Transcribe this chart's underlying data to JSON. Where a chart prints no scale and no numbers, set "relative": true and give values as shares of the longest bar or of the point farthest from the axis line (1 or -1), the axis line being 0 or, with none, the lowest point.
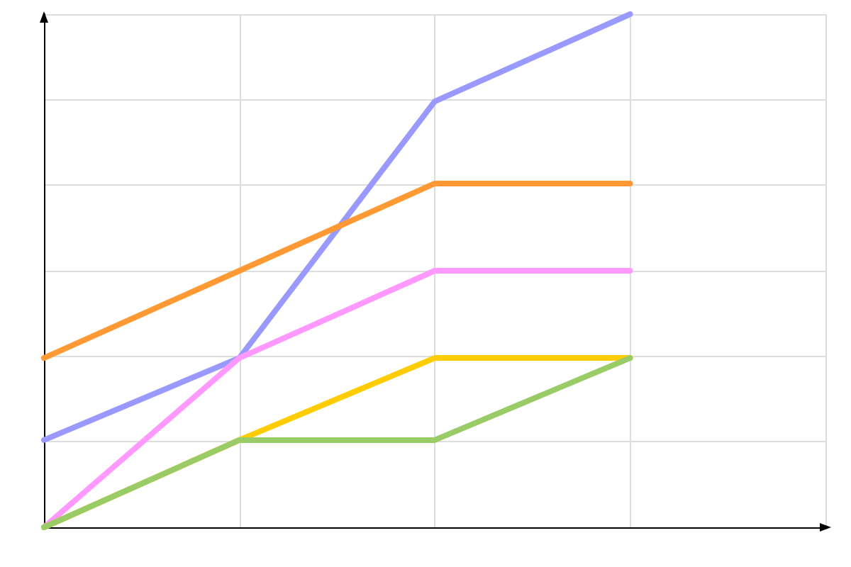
{
  "chart_data": {
    "type": "line",
    "relative": true,
    "categories": [
      null,
      null,
      null,
      null,
      null
    ],
    "series": [
      {
        "color": "#9999ff",
        "values": [
          0.17,
          0.33,
          0.83,
          1,
          null
        ]
      },
      {
        "color": "#ff9933",
        "values": [
          0.33,
          0.5,
          0.67,
          0.67,
          null
        ]
      },
      {
        "color": "#ff99ff",
        "values": [
          0,
          0.33,
          0.5,
          0.5,
          null
        ]
      },
      {
        "color": "#ffcc00",
        "values": [
          0,
          0.17,
          0.33,
          0.33,
          null
        ]
      },
      {
        "color": "#99cc66",
        "values": [
          0,
          0.17,
          0.17,
          0.33,
          null
        ]
      }
    ],
    "grid": true,
    "marker": "none",
    "line_style": "solid"
  }
}
